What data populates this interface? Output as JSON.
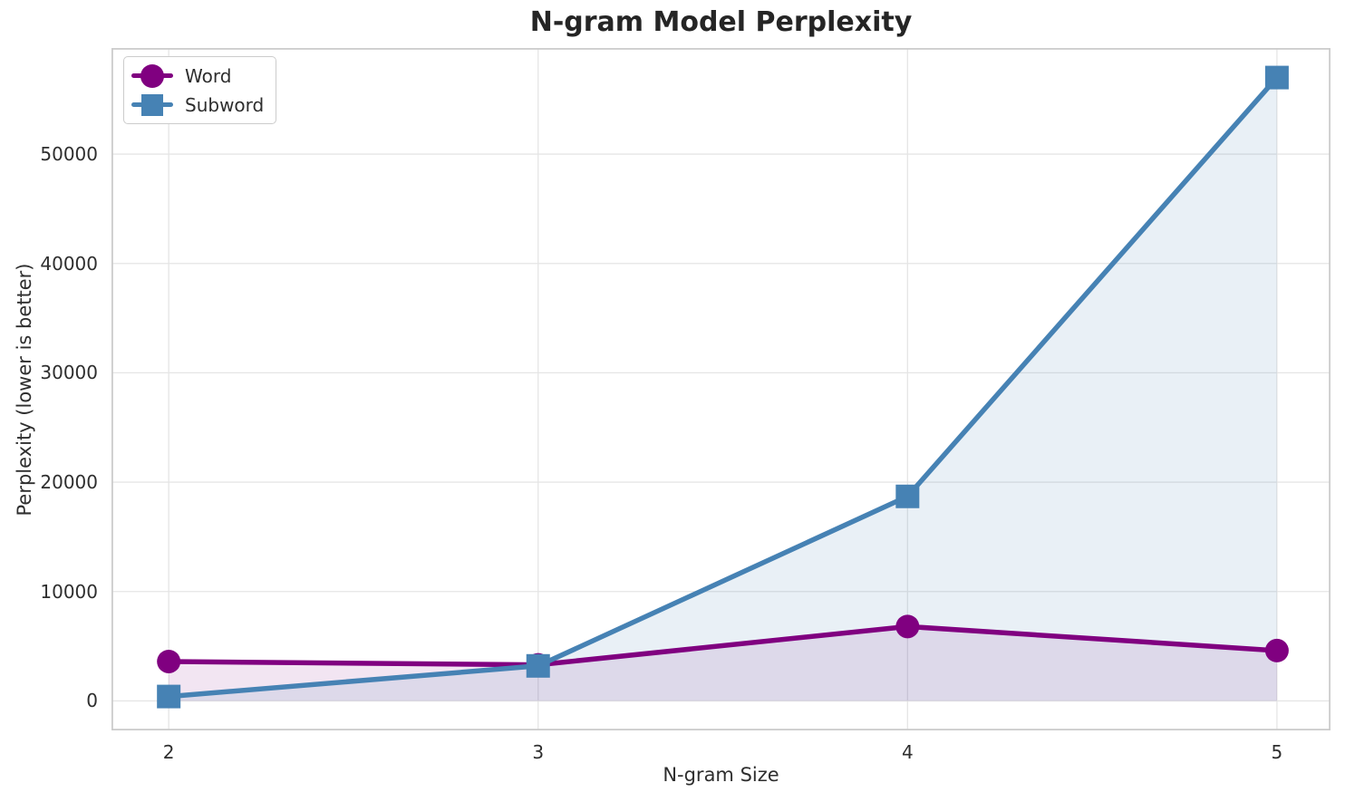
{
  "chart_data": {
    "type": "line",
    "title": "N-gram Model Perplexity",
    "xlabel": "N-gram Size",
    "ylabel": "Perplexity (lower is better)",
    "x": [
      2,
      3,
      4,
      5
    ],
    "series": [
      {
        "name": "Word",
        "values": [
          3600,
          3300,
          6800,
          4600
        ],
        "color": "#800080",
        "marker": "circle",
        "fill_opacity": 0.1
      },
      {
        "name": "Subword",
        "values": [
          400,
          3200,
          18700,
          57000
        ],
        "color": "#4682B4",
        "marker": "square",
        "fill_opacity": 0.12
      }
    ],
    "fill_to_zero": true,
    "xticks": [
      2,
      3,
      4,
      5
    ],
    "xtick_labels": [
      "2",
      "3",
      "4",
      "5"
    ],
    "yticks": [
      0,
      10000,
      20000,
      30000,
      40000,
      50000
    ],
    "ytick_labels": [
      "0",
      "10000",
      "20000",
      "30000",
      "40000",
      "50000"
    ],
    "xlim": [
      1.845,
      5.145
    ],
    "ylim": [
      -2700,
      59700
    ],
    "grid": true,
    "legend_position": "upper-left",
    "line_width": 5.5,
    "marker_size": 26,
    "colors": {
      "grid": "#e5e5e5",
      "spine": "#cccccc",
      "text": "#2e2e2e",
      "title": "#252525",
      "background": "#ffffff"
    }
  }
}
